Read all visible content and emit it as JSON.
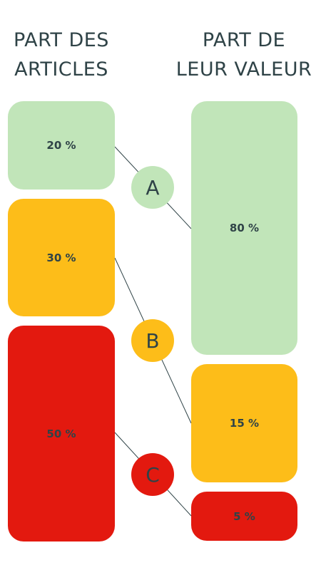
{
  "headers": {
    "left": [
      "PART DES",
      "ARTICLES"
    ],
    "right": [
      "PART DE",
      "LEUR VALEUR"
    ]
  },
  "categories": [
    {
      "label": "A",
      "articles": "20 %",
      "valeur": "80 %",
      "color": "#c1e5b9"
    },
    {
      "label": "B",
      "articles": "30 %",
      "valeur": "15 %",
      "color": "#fdbd19"
    },
    {
      "label": "C",
      "articles": "50 %",
      "valeur": "5 %",
      "color": "#e3190f"
    }
  ],
  "colors": {
    "text": "#2f4347",
    "line": "#2f4347"
  }
}
